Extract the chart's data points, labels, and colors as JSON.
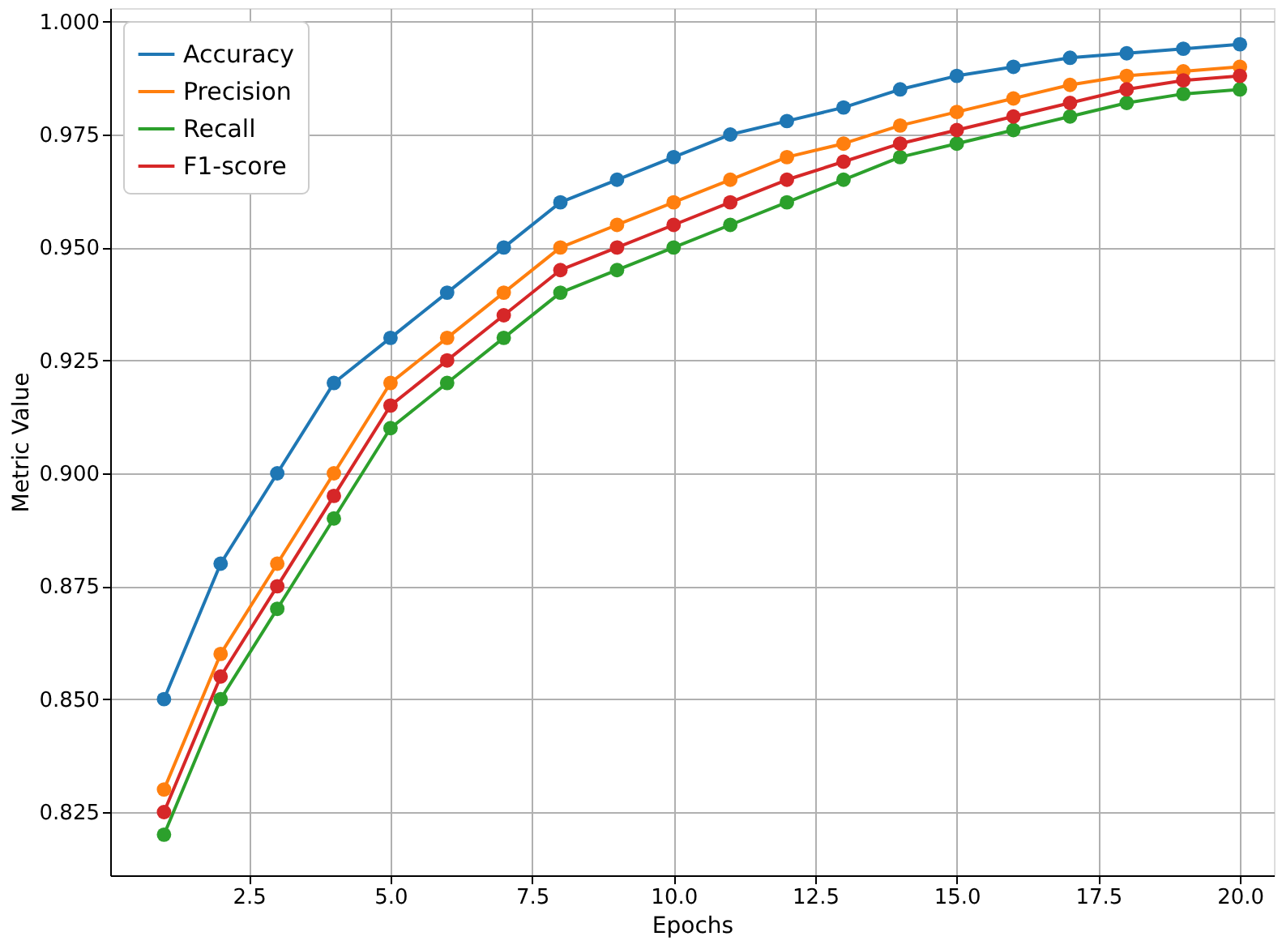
{
  "chart_data": {
    "type": "line",
    "xlabel": "Epochs",
    "ylabel": "Metric Value",
    "x": [
      1,
      2,
      3,
      4,
      5,
      6,
      7,
      8,
      9,
      10,
      11,
      12,
      13,
      14,
      15,
      16,
      17,
      18,
      19,
      20
    ],
    "series": [
      {
        "name": "Accuracy",
        "color": "#1f77b4",
        "values": [
          0.85,
          0.88,
          0.9,
          0.92,
          0.93,
          0.94,
          0.95,
          0.96,
          0.965,
          0.97,
          0.975,
          0.978,
          0.981,
          0.985,
          0.988,
          0.99,
          0.992,
          0.993,
          0.994,
          0.995
        ]
      },
      {
        "name": "Precision",
        "color": "#ff7f0e",
        "values": [
          0.83,
          0.86,
          0.88,
          0.9,
          0.92,
          0.93,
          0.94,
          0.95,
          0.955,
          0.96,
          0.965,
          0.97,
          0.973,
          0.977,
          0.98,
          0.983,
          0.986,
          0.988,
          0.989,
          0.99
        ]
      },
      {
        "name": "Recall",
        "color": "#2ca02c",
        "values": [
          0.82,
          0.85,
          0.87,
          0.89,
          0.91,
          0.92,
          0.93,
          0.94,
          0.945,
          0.95,
          0.955,
          0.96,
          0.965,
          0.97,
          0.973,
          0.976,
          0.979,
          0.982,
          0.984,
          0.985
        ]
      },
      {
        "name": "F1-score",
        "color": "#d62728",
        "values": [
          0.825,
          0.855,
          0.875,
          0.895,
          0.915,
          0.925,
          0.935,
          0.945,
          0.95,
          0.955,
          0.96,
          0.965,
          0.969,
          0.973,
          0.976,
          0.979,
          0.982,
          0.985,
          0.987,
          0.988
        ]
      }
    ],
    "xlim": [
      0.05,
      20.6
    ],
    "ylim": [
      0.811,
      1.003
    ],
    "xticks": [
      {
        "value": 2.5,
        "label": "2.5"
      },
      {
        "value": 5,
        "label": "5.0"
      },
      {
        "value": 7.5,
        "label": "7.5"
      },
      {
        "value": 10,
        "label": "10.0"
      },
      {
        "value": 12.5,
        "label": "12.5"
      },
      {
        "value": 15,
        "label": "15.0"
      },
      {
        "value": 17.5,
        "label": "17.5"
      },
      {
        "value": 20,
        "label": "20.0"
      }
    ],
    "yticks": [
      {
        "value": 0.825,
        "label": "0.825"
      },
      {
        "value": 0.85,
        "label": "0.850"
      },
      {
        "value": 0.875,
        "label": "0.875"
      },
      {
        "value": 0.9,
        "label": "0.900"
      },
      {
        "value": 0.925,
        "label": "0.925"
      },
      {
        "value": 0.95,
        "label": "0.950"
      },
      {
        "value": 0.975,
        "label": "0.975"
      },
      {
        "value": 1.0,
        "label": "1.000"
      }
    ],
    "grid": true,
    "legend": "top left",
    "marker": "circle",
    "line_style": "solid"
  }
}
